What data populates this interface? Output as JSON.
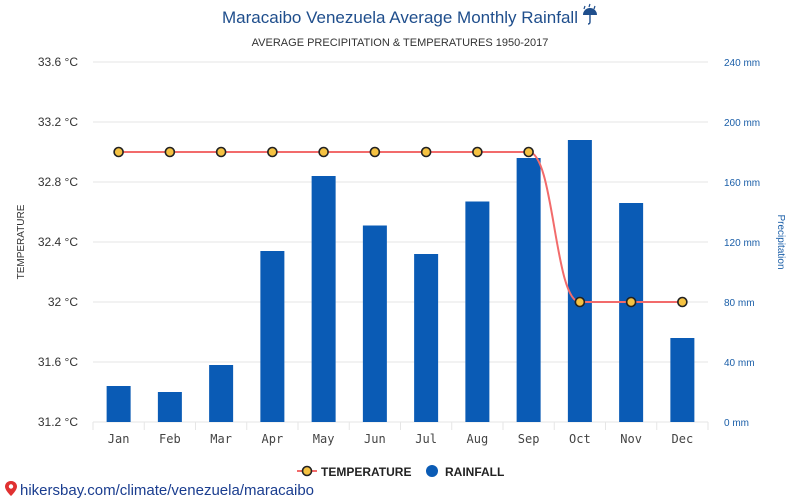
{
  "chart_data": {
    "type": "bar",
    "title": "Maracaibo Venezuela Average Monthly Rainfall",
    "title_icon": "umbrella-rain-icon",
    "subtitle": "AVERAGE PRECIPITATION & TEMPERATURES 1950-2017",
    "categories": [
      "Jan",
      "Feb",
      "Mar",
      "Apr",
      "May",
      "Jun",
      "Jul",
      "Aug",
      "Sep",
      "Oct",
      "Nov",
      "Dec"
    ],
    "series": [
      {
        "name": "TEMPERATURE",
        "type": "line",
        "axis": "left",
        "color": "#f26b6b",
        "marker_fill": "#f5c242",
        "marker_stroke": "#222222",
        "values": [
          33,
          33,
          33,
          33,
          33,
          33,
          33,
          33,
          33,
          32,
          32,
          32
        ]
      },
      {
        "name": "RAINFALL",
        "type": "bar",
        "axis": "right",
        "color": "#0a5bb5",
        "values": [
          24,
          20,
          38,
          114,
          164,
          131,
          112,
          147,
          176,
          188,
          146,
          56
        ]
      }
    ],
    "y_left": {
      "label": "TEMPERATURE",
      "ylim": [
        31.2,
        33.6
      ],
      "ticks": [
        31.2,
        31.6,
        32,
        32.4,
        32.8,
        33.2,
        33.6
      ],
      "tick_labels": [
        "31.2 °C",
        "31.6 °C",
        "32 °C",
        "32.4 °C",
        "32.8 °C",
        "33.2 °C",
        "33.6 °C"
      ]
    },
    "y_right": {
      "label": "Precipitation",
      "ylim": [
        0,
        240
      ],
      "ticks": [
        0,
        40,
        80,
        120,
        160,
        200,
        240
      ],
      "tick_labels": [
        "0 mm",
        "40 mm",
        "80 mm",
        "120 mm",
        "160 mm",
        "200 mm",
        "240 mm"
      ]
    },
    "grid": true,
    "legend_position": "bottom-center",
    "source_text": "hikersbay.com/climate/venezuela/maracaibo",
    "source_icon": "map-pin-icon",
    "colors": {
      "title": "#1f4e8c",
      "grid": "#e6e6e6",
      "right_axis": "#1a5ea8",
      "source": "#1a3d8f"
    }
  }
}
